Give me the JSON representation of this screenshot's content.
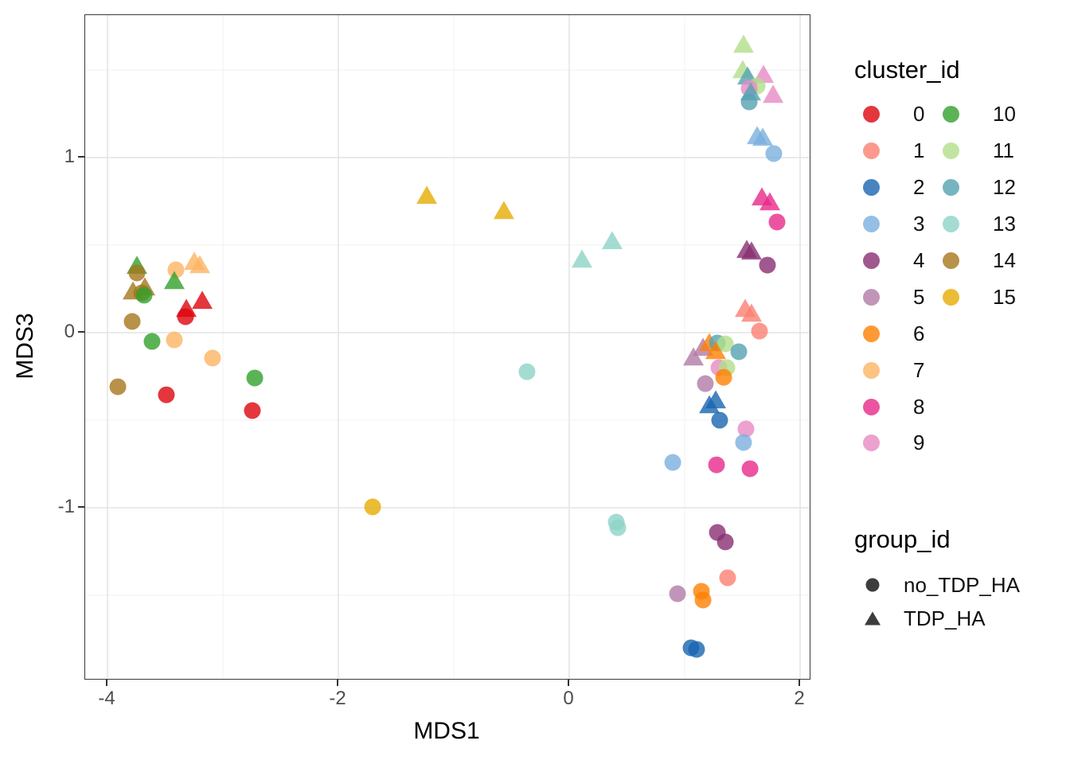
{
  "axes": {
    "x": {
      "label": "MDS1",
      "ticks": [
        -4,
        -2,
        0,
        2
      ],
      "minor": [
        -3,
        -1,
        1
      ],
      "range": [
        -4.21,
        2.08
      ]
    },
    "y": {
      "label": "MDS3",
      "ticks": [
        -1,
        0,
        1
      ],
      "minor": [
        -1.5,
        -0.5,
        0.5,
        1.5
      ],
      "range": [
        -1.98,
        1.81
      ]
    }
  },
  "legend": {
    "cluster": {
      "title": "cluster_id",
      "entries": [
        {
          "label": "0",
          "color": "#DC050C"
        },
        {
          "label": "1",
          "color": "#FB8072"
        },
        {
          "label": "2",
          "color": "#1965B0"
        },
        {
          "label": "3",
          "color": "#7BAFDE"
        },
        {
          "label": "4",
          "color": "#882E72"
        },
        {
          "label": "5",
          "color": "#B17BA6"
        },
        {
          "label": "6",
          "color": "#FF7F00"
        },
        {
          "label": "7",
          "color": "#FDB462"
        },
        {
          "label": "8",
          "color": "#E7298A"
        },
        {
          "label": "9",
          "color": "#E78AC3"
        },
        {
          "label": "10",
          "color": "#33A02C"
        },
        {
          "label": "11",
          "color": "#B2DF8A"
        },
        {
          "label": "12",
          "color": "#55A1B1"
        },
        {
          "label": "13",
          "color": "#8DD3C7"
        },
        {
          "label": "14",
          "color": "#A6761D"
        },
        {
          "label": "15",
          "color": "#E6AB02"
        }
      ]
    },
    "group": {
      "title": "group_id",
      "symbol_color": "#3d3d3d",
      "entries": [
        {
          "label": "no_TDP_HA",
          "shape": "circle"
        },
        {
          "label": "TDP_HA",
          "shape": "triangle"
        }
      ]
    }
  },
  "chart_data": {
    "type": "scatter",
    "title": "",
    "xlabel": "MDS1",
    "ylabel": "MDS3",
    "xlim": [
      -4.21,
      2.08
    ],
    "ylim": [
      -1.98,
      1.81
    ],
    "x_ticks": [
      -4,
      -2,
      0,
      2
    ],
    "y_ticks": [
      -1,
      0,
      1
    ],
    "grid": true,
    "legend_position": "right",
    "point_format": [
      "MDS1",
      "MDS3",
      "cluster_id",
      "group_id"
    ],
    "points": [
      [
        -3.745,
        0.382,
        "10",
        "TDP_HA"
      ],
      [
        -3.745,
        0.341,
        "14",
        "no_TDP_HA"
      ],
      [
        -3.676,
        0.259,
        "14",
        "TDP_HA"
      ],
      [
        -3.779,
        0.236,
        "14",
        "TDP_HA"
      ],
      [
        -3.703,
        0.227,
        "14",
        "no_TDP_HA"
      ],
      [
        -3.683,
        0.214,
        "10",
        "no_TDP_HA"
      ],
      [
        -3.407,
        0.359,
        "7",
        "no_TDP_HA"
      ],
      [
        -3.248,
        0.405,
        "7",
        "TDP_HA"
      ],
      [
        -3.2,
        0.386,
        "7",
        "TDP_HA"
      ],
      [
        -3.421,
        0.295,
        "10",
        "TDP_HA"
      ],
      [
        -3.179,
        0.182,
        "0",
        "TDP_HA"
      ],
      [
        -3.317,
        0.136,
        "0",
        "TDP_HA"
      ],
      [
        -3.324,
        0.091,
        "0",
        "no_TDP_HA"
      ],
      [
        -3.786,
        0.064,
        "14",
        "no_TDP_HA"
      ],
      [
        -3.614,
        -0.05,
        "10",
        "no_TDP_HA"
      ],
      [
        -3.421,
        -0.041,
        "7",
        "no_TDP_HA"
      ],
      [
        -3.09,
        -0.145,
        "7",
        "no_TDP_HA"
      ],
      [
        -3.91,
        -0.309,
        "14",
        "no_TDP_HA"
      ],
      [
        -3.49,
        -0.355,
        "0",
        "no_TDP_HA"
      ],
      [
        -2.724,
        -0.259,
        "10",
        "no_TDP_HA"
      ],
      [
        -2.745,
        -0.445,
        "0",
        "no_TDP_HA"
      ],
      [
        -1.234,
        0.782,
        "15",
        "TDP_HA"
      ],
      [
        -0.566,
        0.695,
        "15",
        "TDP_HA"
      ],
      [
        0.372,
        0.523,
        "13",
        "TDP_HA"
      ],
      [
        0.11,
        0.418,
        "13",
        "TDP_HA"
      ],
      [
        -0.366,
        -0.223,
        "13",
        "no_TDP_HA"
      ],
      [
        -1.703,
        -0.995,
        "15",
        "no_TDP_HA"
      ],
      [
        0.407,
        -1.082,
        "13",
        "no_TDP_HA"
      ],
      [
        0.421,
        -1.114,
        "13",
        "no_TDP_HA"
      ],
      [
        1.51,
        1.645,
        "11",
        "TDP_HA"
      ],
      [
        1.503,
        1.5,
        "11",
        "TDP_HA"
      ],
      [
        1.545,
        1.464,
        "12",
        "TDP_HA"
      ],
      [
        1.683,
        1.473,
        "9",
        "TDP_HA"
      ],
      [
        1.628,
        1.409,
        "11",
        "no_TDP_HA"
      ],
      [
        1.559,
        1.395,
        "9",
        "no_TDP_HA"
      ],
      [
        1.572,
        1.373,
        "12",
        "TDP_HA"
      ],
      [
        1.766,
        1.359,
        "9",
        "TDP_HA"
      ],
      [
        1.559,
        1.318,
        "12",
        "no_TDP_HA"
      ],
      [
        1.628,
        1.123,
        "3",
        "TDP_HA"
      ],
      [
        1.676,
        1.114,
        "3",
        "TDP_HA"
      ],
      [
        1.772,
        1.023,
        "3",
        "no_TDP_HA"
      ],
      [
        1.669,
        0.773,
        "8",
        "TDP_HA"
      ],
      [
        1.738,
        0.745,
        "8",
        "TDP_HA"
      ],
      [
        1.8,
        0.632,
        "8",
        "no_TDP_HA"
      ],
      [
        1.538,
        0.473,
        "4",
        "TDP_HA"
      ],
      [
        1.579,
        0.464,
        "4",
        "TDP_HA"
      ],
      [
        1.717,
        0.386,
        "4",
        "no_TDP_HA"
      ],
      [
        1.524,
        0.136,
        "1",
        "TDP_HA"
      ],
      [
        1.579,
        0.109,
        "1",
        "TDP_HA"
      ],
      [
        1.648,
        0.009,
        "1",
        "no_TDP_HA"
      ],
      [
        1.159,
        -0.086,
        "5",
        "TDP_HA"
      ],
      [
        1.214,
        -0.059,
        "6",
        "TDP_HA"
      ],
      [
        1.283,
        -0.059,
        "12",
        "no_TDP_HA"
      ],
      [
        1.352,
        -0.064,
        "11",
        "no_TDP_HA"
      ],
      [
        1.269,
        -0.105,
        "6",
        "TDP_HA"
      ],
      [
        1.469,
        -0.109,
        "12",
        "no_TDP_HA"
      ],
      [
        1.076,
        -0.141,
        "5",
        "TDP_HA"
      ],
      [
        1.297,
        -0.2,
        "9",
        "no_TDP_HA"
      ],
      [
        1.366,
        -0.2,
        "11",
        "no_TDP_HA"
      ],
      [
        1.338,
        -0.255,
        "6",
        "no_TDP_HA"
      ],
      [
        1.179,
        -0.291,
        "5",
        "no_TDP_HA"
      ],
      [
        1.269,
        -0.386,
        "2",
        "TDP_HA"
      ],
      [
        1.214,
        -0.414,
        "2",
        "TDP_HA"
      ],
      [
        1.303,
        -0.5,
        "2",
        "no_TDP_HA"
      ],
      [
        1.531,
        -0.55,
        "9",
        "no_TDP_HA"
      ],
      [
        1.51,
        -0.627,
        "3",
        "no_TDP_HA"
      ],
      [
        0.897,
        -0.741,
        "3",
        "no_TDP_HA"
      ],
      [
        1.276,
        -0.755,
        "8",
        "no_TDP_HA"
      ],
      [
        1.566,
        -0.777,
        "8",
        "no_TDP_HA"
      ],
      [
        1.283,
        -1.141,
        "4",
        "no_TDP_HA"
      ],
      [
        1.352,
        -1.195,
        "4",
        "no_TDP_HA"
      ],
      [
        1.372,
        -1.4,
        "1",
        "no_TDP_HA"
      ],
      [
        0.938,
        -1.491,
        "5",
        "no_TDP_HA"
      ],
      [
        1.145,
        -1.477,
        "6",
        "no_TDP_HA"
      ],
      [
        1.159,
        -1.527,
        "6",
        "no_TDP_HA"
      ],
      [
        1.055,
        -1.8,
        "2",
        "no_TDP_HA"
      ],
      [
        1.103,
        -1.809,
        "2",
        "no_TDP_HA"
      ]
    ]
  }
}
